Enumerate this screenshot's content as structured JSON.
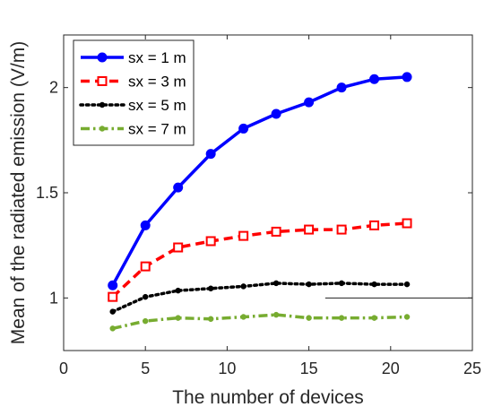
{
  "chart_data": {
    "type": "line",
    "title": "",
    "xlabel": "The number of devices",
    "ylabel": "Mean of the radiated emission (V/m)",
    "xlim": [
      0,
      25
    ],
    "ylim": [
      0.75,
      2.25
    ],
    "xticks": [
      0,
      5,
      10,
      15,
      20,
      25
    ],
    "xtick_labels": [
      "0",
      "5",
      "10",
      "15",
      "20",
      "25"
    ],
    "yticks": [
      1,
      1.5,
      2
    ],
    "ytick_labels": [
      "1",
      "1.5",
      "2"
    ],
    "grid": false,
    "legend_position": "top-left",
    "x": [
      3,
      5,
      7,
      9,
      11,
      13,
      15,
      17,
      19,
      21
    ],
    "series": [
      {
        "name": "sx = 1 m",
        "color": "#0000ff",
        "line_style": "solid",
        "marker": "circle",
        "values": [
          1.06,
          1.345,
          1.525,
          1.685,
          1.805,
          1.875,
          1.93,
          2.0,
          2.04,
          2.05
        ]
      },
      {
        "name": "sx = 3 m",
        "color": "#ff0000",
        "line_style": "dashed",
        "marker": "square",
        "values": [
          1.005,
          1.15,
          1.24,
          1.27,
          1.295,
          1.315,
          1.325,
          1.325,
          1.345,
          1.355
        ]
      },
      {
        "name": "sx = 5 m",
        "color": "#000000",
        "line_style": "dotted",
        "marker": "dot",
        "values": [
          0.935,
          1.005,
          1.035,
          1.045,
          1.055,
          1.07,
          1.065,
          1.07,
          1.065,
          1.065
        ]
      },
      {
        "name": "sx = 7 m",
        "color": "#77ac30",
        "line_style": "dashdot",
        "marker": "dot",
        "values": [
          0.855,
          0.89,
          0.905,
          0.9,
          0.91,
          0.92,
          0.905,
          0.905,
          0.905,
          0.91
        ]
      }
    ],
    "reference_lines": [
      {
        "x": [
          16,
          25
        ],
        "y": 1,
        "color": "#000000"
      }
    ]
  }
}
